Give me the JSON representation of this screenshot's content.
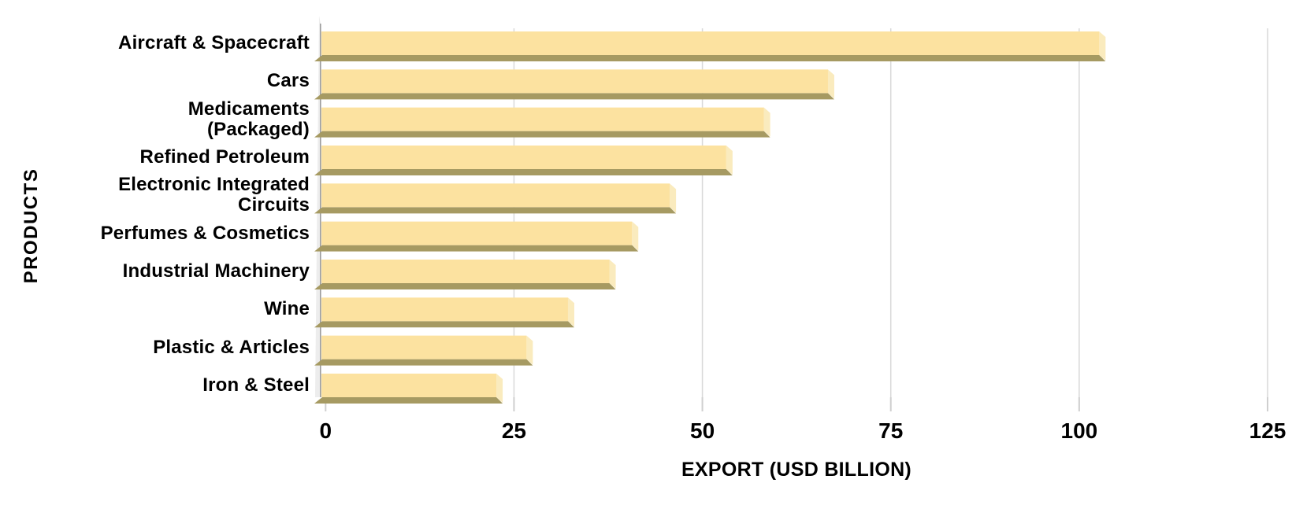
{
  "chart_data": {
    "type": "bar",
    "orientation": "horizontal",
    "style": "3d-beveled-bars",
    "title": "",
    "xlabel": "EXPORT (USD BILLION)",
    "ylabel": "PRODUCTS",
    "categories": [
      "Aircraft & Spacecraft",
      "Cars",
      "Medicaments\n(Packaged)",
      "Refined Petroleum",
      "Electronic Integrated\nCircuits",
      "Perfumes & Cosmetics",
      "Industrial Machinery",
      "Wine",
      "Plastic & Articles",
      "Iron & Steel"
    ],
    "values": [
      103.5,
      67.5,
      59,
      54,
      46.5,
      41.5,
      38.5,
      33,
      27.5,
      23.5
    ],
    "x_ticks": [
      0,
      25,
      50,
      75,
      100,
      125
    ],
    "xlim": [
      0,
      125
    ],
    "grid": true,
    "legend": false,
    "colors": {
      "bar_face": "#FCE2A0",
      "bar_cap": "#FAEBBE",
      "bar_shadow": "#A69A62",
      "gridline": "#D9D9D9",
      "tick": "#CFCFCF",
      "wall": "#EDEDED",
      "wall_edge": "#9C9C9C",
      "text": "#000000",
      "background": "#FFFFFF"
    }
  }
}
